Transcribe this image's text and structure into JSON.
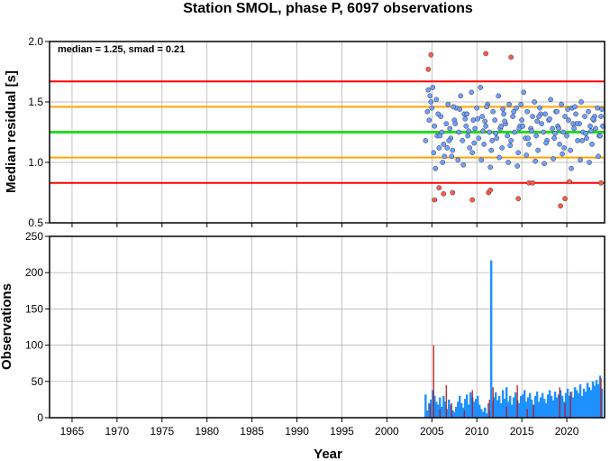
{
  "title": "Station SMOL, phase P, 6097 observations",
  "colors": {
    "ref_median": "#22dd22",
    "ref_inner": "#ffa500",
    "ref_outer": "#ff0000",
    "point_in": "#6fa0ff",
    "point_out": "#ff5a4a",
    "bar_main": "#1e90ff",
    "bar_highlight": "#c01010",
    "grid": "#aaaaaa"
  },
  "chart_data": [
    {
      "type": "scatter",
      "ylabel": "Median residual [s]",
      "xlabel": "",
      "annotation": "median = 1.25, smad = 0.21",
      "xlim": [
        1962.5,
        2024.2
      ],
      "ylim": [
        0.5,
        2.0
      ],
      "yticks": [
        0.5,
        1.0,
        1.5,
        2.0
      ],
      "ytick_labels": [
        "0.5",
        "1.0",
        "1.5",
        "2.0"
      ],
      "xticks": [
        1965,
        1970,
        1975,
        1980,
        1985,
        1990,
        1995,
        2000,
        2005,
        2010,
        2015,
        2020
      ],
      "grid": true,
      "reference_lines": [
        {
          "kind": "median",
          "value": 1.25
        },
        {
          "kind": "inner",
          "value": 1.46
        },
        {
          "kind": "inner",
          "value": 1.04
        },
        {
          "kind": "outer",
          "value": 1.67
        },
        {
          "kind": "outer",
          "value": 0.83
        }
      ],
      "series": [
        {
          "kind": "in",
          "x": [
            2004.3,
            2004.5,
            2004.7,
            2004.8,
            2005.0,
            2005.1,
            2005.2,
            2005.3,
            2005.5,
            2005.6,
            2005.8,
            2006.0,
            2006.1,
            2006.3,
            2006.4,
            2006.6,
            2006.8,
            2007.0,
            2007.1,
            2007.3,
            2007.5,
            2007.7,
            2007.9,
            2008.0,
            2008.2,
            2008.4,
            2008.6,
            2008.8,
            2009.0,
            2009.2,
            2009.4,
            2009.6,
            2009.8,
            2010.0,
            2010.2,
            2010.4,
            2010.6,
            2010.8,
            2011.0,
            2011.2,
            2011.4,
            2011.6,
            2011.8,
            2012.0,
            2012.2,
            2012.4,
            2012.6,
            2012.8,
            2013.0,
            2013.2,
            2013.4,
            2013.6,
            2013.8,
            2014.0,
            2014.2,
            2014.4,
            2014.6,
            2014.8,
            2015.0,
            2015.2,
            2015.4,
            2015.6,
            2015.8,
            2016.0,
            2016.2,
            2016.4,
            2016.6,
            2016.8,
            2017.0,
            2017.2,
            2017.4,
            2017.6,
            2017.8,
            2018.0,
            2018.2,
            2018.4,
            2018.6,
            2018.8,
            2019.0,
            2019.2,
            2019.4,
            2019.6,
            2019.8,
            2020.0,
            2020.2,
            2020.4,
            2020.6,
            2020.8,
            2021.0,
            2021.2,
            2021.4,
            2021.6,
            2021.8,
            2022.0,
            2022.2,
            2022.4,
            2022.6,
            2022.8,
            2023.0,
            2023.2,
            2023.4,
            2023.6,
            2023.8,
            2024.0,
            2005.4,
            2006.2,
            2007.2,
            2008.5,
            2009.5,
            2010.5,
            2011.5,
            2012.5,
            2013.5,
            2014.5,
            2015.5,
            2016.5,
            2017.5,
            2018.5,
            2019.5,
            2020.5,
            2021.5,
            2022.5,
            2023.5,
            2004.9,
            2005.7,
            2006.9,
            2007.6,
            2008.1,
            2009.1,
            2010.1,
            2011.1,
            2012.1,
            2013.1,
            2014.1,
            2015.1,
            2016.1,
            2017.1,
            2018.1,
            2019.1,
            2020.1,
            2021.1,
            2022.1,
            2023.1,
            2005.9,
            2006.7,
            2008.7,
            2009.7,
            2010.7,
            2011.7,
            2012.7,
            2013.7,
            2014.7,
            2015.7,
            2016.7,
            2017.7,
            2018.7,
            2019.7,
            2020.7,
            2021.7,
            2022.7,
            2023.7,
            2004.6,
            2007.4,
            2008.9,
            2010.9,
            2012.9,
            2014.9,
            2016.9,
            2018.9,
            2020.9,
            2022.9,
            2023.9
          ],
          "y": [
            1.18,
            1.42,
            1.35,
            1.55,
            1.45,
            1.62,
            1.08,
            1.3,
            1.52,
            1.22,
            1.12,
            1.38,
            1.25,
            1.15,
            1.05,
            1.32,
            1.48,
            1.28,
            1.2,
            1.1,
            1.35,
            1.45,
            1.02,
            1.25,
            1.55,
            1.18,
            1.4,
            1.3,
            1.22,
            1.12,
            1.58,
            1.35,
            1.28,
            1.45,
            1.2,
            1.62,
            1.38,
            1.15,
            1.3,
            1.48,
            1.25,
            1.1,
            1.42,
            1.35,
            1.2,
            1.55,
            1.28,
            1.12,
            1.4,
            1.32,
            1.22,
            1.48,
            1.18,
            1.38,
            1.25,
            1.45,
            1.08,
            1.3,
            1.35,
            1.58,
            1.2,
            1.42,
            1.15,
            1.28,
            1.38,
            1.5,
            1.22,
            1.1,
            1.45,
            1.32,
            1.25,
            1.4,
            1.18,
            1.35,
            1.52,
            1.28,
            1.2,
            1.42,
            1.3,
            1.15,
            1.48,
            1.25,
            1.38,
            1.22,
            1.35,
            1.1,
            1.45,
            1.28,
            1.4,
            1.18,
            1.32,
            1.5,
            1.25,
            1.38,
            1.2,
            1.42,
            1.3,
            1.15,
            1.35,
            1.28,
            1.45,
            1.22,
            1.38,
            1.3,
            0.95,
            1.0,
            1.05,
            0.98,
            1.08,
            1.02,
            0.96,
            1.04,
            1.0,
            0.97,
            1.06,
            1.01,
            0.99,
            1.03,
            1.07,
            0.95,
            1.02,
            1.0,
            1.05,
            1.5,
            1.4,
            1.18,
            1.32,
            1.44,
            1.26,
            1.36,
            1.46,
            1.24,
            1.34,
            1.42,
            1.3,
            1.26,
            1.4,
            1.36,
            1.28,
            1.44,
            1.32,
            1.24,
            1.38,
            1.22,
            1.12,
            1.36,
            1.16,
            1.26,
            1.18,
            1.3,
            1.14,
            1.28,
            1.2,
            1.34,
            1.16,
            1.24,
            1.12,
            1.32,
            1.18,
            1.26,
            1.22,
            1.6,
            1.46,
            1.4,
            1.34,
            1.44,
            1.48,
            1.38,
            1.42,
            1.46,
            1.36,
            1.44
          ]
        },
        {
          "kind": "out",
          "x": [
            2004.6,
            2004.9,
            2005.3,
            2005.8,
            2006.3,
            2007.3,
            2009.5,
            2011.0,
            2011.3,
            2011.5,
            2013.8,
            2014.6,
            2015.8,
            2016.2,
            2019.3,
            2019.8,
            2020.3,
            2023.8
          ],
          "y": [
            1.77,
            1.89,
            0.69,
            0.79,
            0.74,
            0.75,
            0.69,
            1.9,
            0.75,
            0.77,
            1.87,
            0.7,
            0.83,
            0.83,
            0.64,
            0.7,
            0.84,
            0.83
          ]
        }
      ]
    },
    {
      "type": "bar",
      "ylabel": "Observations",
      "xlabel": "Year",
      "xlim": [
        1962.5,
        2024.2
      ],
      "ylim": [
        0,
        250
      ],
      "yticks": [
        0,
        50,
        100,
        150,
        200,
        250
      ],
      "ytick_labels": [
        "0",
        "50",
        "100",
        "150",
        "200",
        "250"
      ],
      "xticks": [
        1965,
        1970,
        1975,
        1980,
        1985,
        1990,
        1995,
        2000,
        2005,
        2010,
        2015,
        2020
      ],
      "xtick_labels": [
        "1965",
        "1970",
        "1975",
        "1980",
        "1985",
        "1990",
        "1995",
        "2000",
        "2005",
        "2010",
        "2015",
        "2020"
      ],
      "grid": true,
      "bars": {
        "x": [
          2004.3,
          2004.5,
          2004.7,
          2004.9,
          2005.1,
          2005.3,
          2005.5,
          2005.7,
          2005.9,
          2006.1,
          2006.3,
          2006.5,
          2006.7,
          2006.9,
          2007.1,
          2007.3,
          2007.5,
          2007.7,
          2007.9,
          2008.1,
          2008.3,
          2008.5,
          2008.7,
          2008.9,
          2009.1,
          2009.3,
          2009.5,
          2009.7,
          2009.9,
          2010.1,
          2010.3,
          2010.5,
          2010.7,
          2010.9,
          2011.1,
          2011.3,
          2011.5,
          2011.6,
          2011.7,
          2011.9,
          2012.1,
          2012.3,
          2012.5,
          2012.7,
          2012.9,
          2013.1,
          2013.3,
          2013.5,
          2013.7,
          2013.9,
          2014.1,
          2014.3,
          2014.5,
          2014.7,
          2014.9,
          2015.1,
          2015.3,
          2015.5,
          2015.7,
          2015.9,
          2016.1,
          2016.3,
          2016.5,
          2016.7,
          2016.9,
          2017.1,
          2017.3,
          2017.5,
          2017.7,
          2017.9,
          2018.1,
          2018.3,
          2018.5,
          2018.7,
          2018.9,
          2019.1,
          2019.3,
          2019.5,
          2019.7,
          2019.9,
          2020.1,
          2020.3,
          2020.5,
          2020.7,
          2020.9,
          2021.1,
          2021.3,
          2021.5,
          2021.7,
          2021.9,
          2022.1,
          2022.3,
          2022.5,
          2022.7,
          2022.9,
          2023.1,
          2023.3,
          2023.5,
          2023.7,
          2023.9
        ],
        "values": [
          32,
          10,
          20,
          25,
          38,
          30,
          22,
          18,
          28,
          15,
          30,
          22,
          12,
          25,
          18,
          10,
          8,
          15,
          22,
          30,
          20,
          14,
          26,
          32,
          18,
          35,
          28,
          22,
          26,
          30,
          18,
          12,
          8,
          14,
          6,
          20,
          10,
          217,
          22,
          28,
          35,
          24,
          30,
          20,
          38,
          26,
          42,
          22,
          30,
          18,
          28,
          35,
          24,
          20,
          30,
          32,
          38,
          22,
          28,
          34,
          25,
          18,
          30,
          36,
          22,
          28,
          34,
          26,
          20,
          32,
          38,
          30,
          24,
          36,
          28,
          32,
          38,
          30,
          22,
          34,
          40,
          30,
          36,
          28,
          42,
          38,
          34,
          46,
          30,
          40,
          36,
          48,
          42,
          38,
          50,
          44,
          52,
          46,
          58,
          40
        ]
      },
      "highlight_bars": {
        "x": [
          2004.8,
          2005.2,
          2005.9,
          2006.6,
          2007.2,
          2008.6,
          2009.5,
          2011.4,
          2011.8,
          2013.3,
          2014.5,
          2015.6,
          2016.3,
          2019.2,
          2019.8,
          2020.4,
          2023.8
        ],
        "values": [
          18,
          100,
          12,
          45,
          20,
          10,
          38,
          25,
          42,
          15,
          45,
          12,
          18,
          42,
          20,
          35,
          55
        ]
      }
    }
  ]
}
